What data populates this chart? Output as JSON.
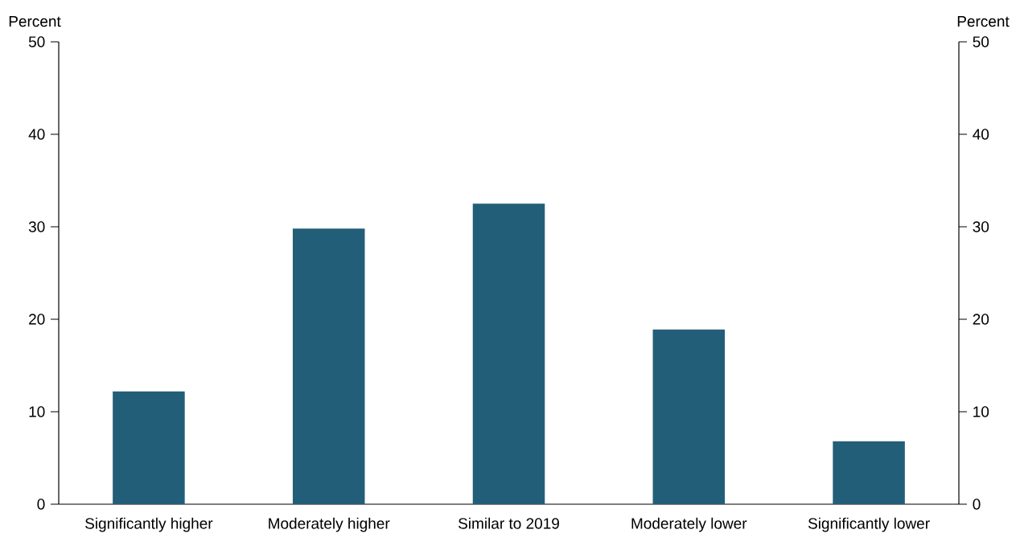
{
  "chart_data": {
    "type": "bar",
    "ylabel": "Percent",
    "y2label": "Percent",
    "categories": [
      "Significantly higher",
      "Moderately higher",
      "Similar to 2019",
      "Moderately lower",
      "Significantly lower"
    ],
    "values": [
      12.2,
      29.8,
      32.5,
      18.9,
      6.8
    ],
    "color": "#225e78",
    "ylim": [
      0,
      50
    ],
    "yticks": [
      0,
      10,
      20,
      30,
      40,
      50
    ],
    "y2lim": [
      0,
      50
    ],
    "y2ticks": [
      0,
      10,
      20,
      30,
      40,
      50
    ],
    "grid": false
  }
}
